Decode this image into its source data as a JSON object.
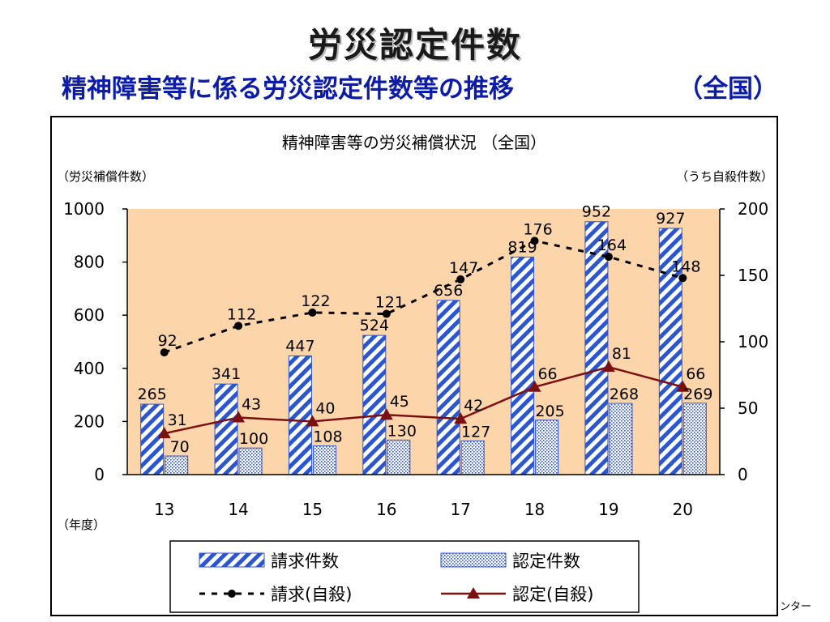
{
  "header": {
    "title": "労災認定件数",
    "subtitle": "精神障害等に係る労災認定件数等の推移",
    "subtitle_scope": "（全国）"
  },
  "footer": {
    "fragment": "ンター"
  },
  "chart_data": {
    "type": "bar",
    "title": "精神障害等の労災補償状況 （全国）",
    "ylabel_left": "（労災補償件数）",
    "ylabel_right": "（うち自殺件数）",
    "xlabel": "（年度）",
    "categories": [
      "13",
      "14",
      "15",
      "16",
      "17",
      "18",
      "19",
      "20"
    ],
    "ylim_left": [
      0,
      1000
    ],
    "yticks_left": [
      0,
      200,
      400,
      600,
      800,
      1000
    ],
    "ylim_right": [
      0,
      200
    ],
    "yticks_right": [
      0,
      50,
      100,
      150,
      200
    ],
    "grid": false,
    "plot_background": "#fdd5ab",
    "legend_position": "bottom",
    "series": [
      {
        "name": "請求件数",
        "kind": "bar",
        "axis": "left",
        "pattern": "diagonal-stripes",
        "color": "#2c55d0",
        "values": [
          265,
          341,
          447,
          524,
          656,
          819,
          952,
          927
        ]
      },
      {
        "name": "認定件数",
        "kind": "bar",
        "axis": "left",
        "pattern": "dots",
        "color": "#2c55d0",
        "values": [
          70,
          100,
          108,
          130,
          127,
          205,
          268,
          269
        ]
      },
      {
        "name": "請求(自殺)",
        "kind": "line",
        "axis": "right",
        "style": "dashed",
        "marker": "circle",
        "color": "#000000",
        "values": [
          92,
          112,
          122,
          121,
          147,
          176,
          164,
          148
        ]
      },
      {
        "name": "認定(自殺)",
        "kind": "line",
        "axis": "right",
        "style": "solid",
        "marker": "triangle",
        "color": "#7b1010",
        "values": [
          31,
          43,
          40,
          45,
          42,
          66,
          81,
          66
        ]
      }
    ]
  }
}
